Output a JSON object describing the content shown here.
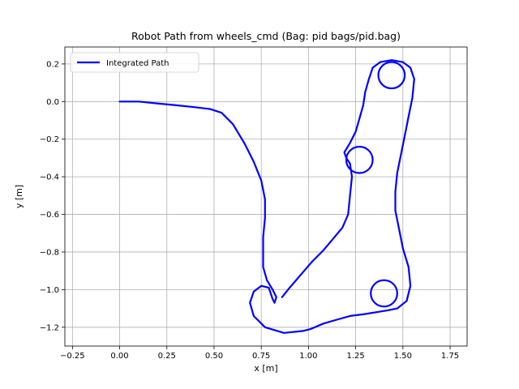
{
  "chart_data": {
    "type": "line",
    "title": "Robot Path from wheels_cmd (Bag: pid bags/pid.bag)",
    "xlabel": "x [m]",
    "ylabel": "y [m]",
    "xlim": [
      -0.29,
      1.84
    ],
    "ylim": [
      -1.3,
      0.29
    ],
    "xticks": [
      -0.25,
      0.0,
      0.25,
      0.5,
      0.75,
      1.0,
      1.25,
      1.5,
      1.75
    ],
    "xtick_labels": [
      "−0.25",
      "0.00",
      "0.25",
      "0.50",
      "0.75",
      "1.00",
      "1.25",
      "1.50",
      "1.75"
    ],
    "yticks": [
      0.2,
      0.0,
      -0.2,
      -0.4,
      -0.6,
      -0.8,
      -1.0,
      -1.2
    ],
    "ytick_labels": [
      "0.2",
      "0.0",
      "−0.2",
      "−0.4",
      "−0.6",
      "−0.8",
      "−1.0",
      "−1.2"
    ],
    "grid": true,
    "legend_position": "top-left",
    "series": [
      {
        "name": "Integrated Path",
        "color": "#0000ff",
        "points": [
          [
            0.0,
            0.0
          ],
          [
            0.1,
            0.0
          ],
          [
            0.2,
            -0.01
          ],
          [
            0.3,
            -0.02
          ],
          [
            0.4,
            -0.03
          ],
          [
            0.48,
            -0.04
          ],
          [
            0.54,
            -0.06
          ],
          [
            0.6,
            -0.12
          ],
          [
            0.66,
            -0.22
          ],
          [
            0.71,
            -0.32
          ],
          [
            0.75,
            -0.42
          ],
          [
            0.77,
            -0.52
          ],
          [
            0.77,
            -0.62
          ],
          [
            0.76,
            -0.72
          ],
          [
            0.76,
            -0.8
          ],
          [
            0.76,
            -0.88
          ],
          [
            0.78,
            -0.95
          ],
          [
            0.81,
            -1.0
          ],
          [
            0.83,
            -1.04
          ],
          [
            0.82,
            -1.07
          ],
          [
            0.81,
            -1.05
          ],
          [
            0.79,
            -0.99
          ],
          [
            0.75,
            -0.98
          ],
          [
            0.71,
            -1.01
          ],
          [
            0.69,
            -1.07
          ],
          [
            0.71,
            -1.14
          ],
          [
            0.77,
            -1.2
          ],
          [
            0.87,
            -1.23
          ],
          [
            0.97,
            -1.22
          ],
          [
            1.01,
            -1.21
          ],
          [
            1.08,
            -1.18
          ],
          [
            1.15,
            -1.16
          ],
          [
            1.22,
            -1.14
          ],
          [
            1.3,
            -1.13
          ],
          [
            1.36,
            -1.12
          ],
          [
            1.42,
            -1.11
          ],
          [
            1.47,
            -1.1
          ],
          [
            1.52,
            -1.06
          ],
          [
            1.54,
            -0.98
          ],
          [
            1.53,
            -0.88
          ],
          [
            1.5,
            -0.78
          ],
          [
            1.48,
            -0.68
          ],
          [
            1.46,
            -0.58
          ],
          [
            1.46,
            -0.48
          ],
          [
            1.47,
            -0.38
          ],
          [
            1.49,
            -0.28
          ],
          [
            1.51,
            -0.18
          ],
          [
            1.53,
            -0.08
          ],
          [
            1.55,
            0.02
          ],
          [
            1.56,
            0.12
          ],
          [
            1.54,
            0.18
          ],
          [
            1.5,
            0.21
          ],
          [
            1.44,
            0.22
          ],
          [
            1.38,
            0.21
          ],
          [
            1.34,
            0.18
          ],
          [
            1.32,
            0.12
          ],
          [
            1.3,
            0.05
          ],
          [
            1.29,
            -0.02
          ],
          [
            1.27,
            -0.09
          ],
          [
            1.25,
            -0.16
          ],
          [
            1.22,
            -0.22
          ],
          [
            1.19,
            -0.27
          ],
          [
            1.2,
            -0.3
          ],
          [
            1.22,
            -0.33
          ],
          [
            1.23,
            -0.4
          ],
          [
            1.22,
            -0.5
          ],
          [
            1.21,
            -0.6
          ],
          [
            1.18,
            -0.67
          ],
          [
            1.13,
            -0.73
          ],
          [
            1.08,
            -0.79
          ],
          [
            1.02,
            -0.85
          ],
          [
            0.96,
            -0.92
          ],
          [
            0.9,
            -0.99
          ],
          [
            0.86,
            -1.04
          ]
        ]
      }
    ],
    "loops": [
      {
        "cx": 1.44,
        "cy": 0.14,
        "r": 0.07
      },
      {
        "cx": 1.27,
        "cy": -0.31,
        "r": 0.07
      },
      {
        "cx": 1.4,
        "cy": -1.02,
        "r": 0.07
      }
    ]
  }
}
